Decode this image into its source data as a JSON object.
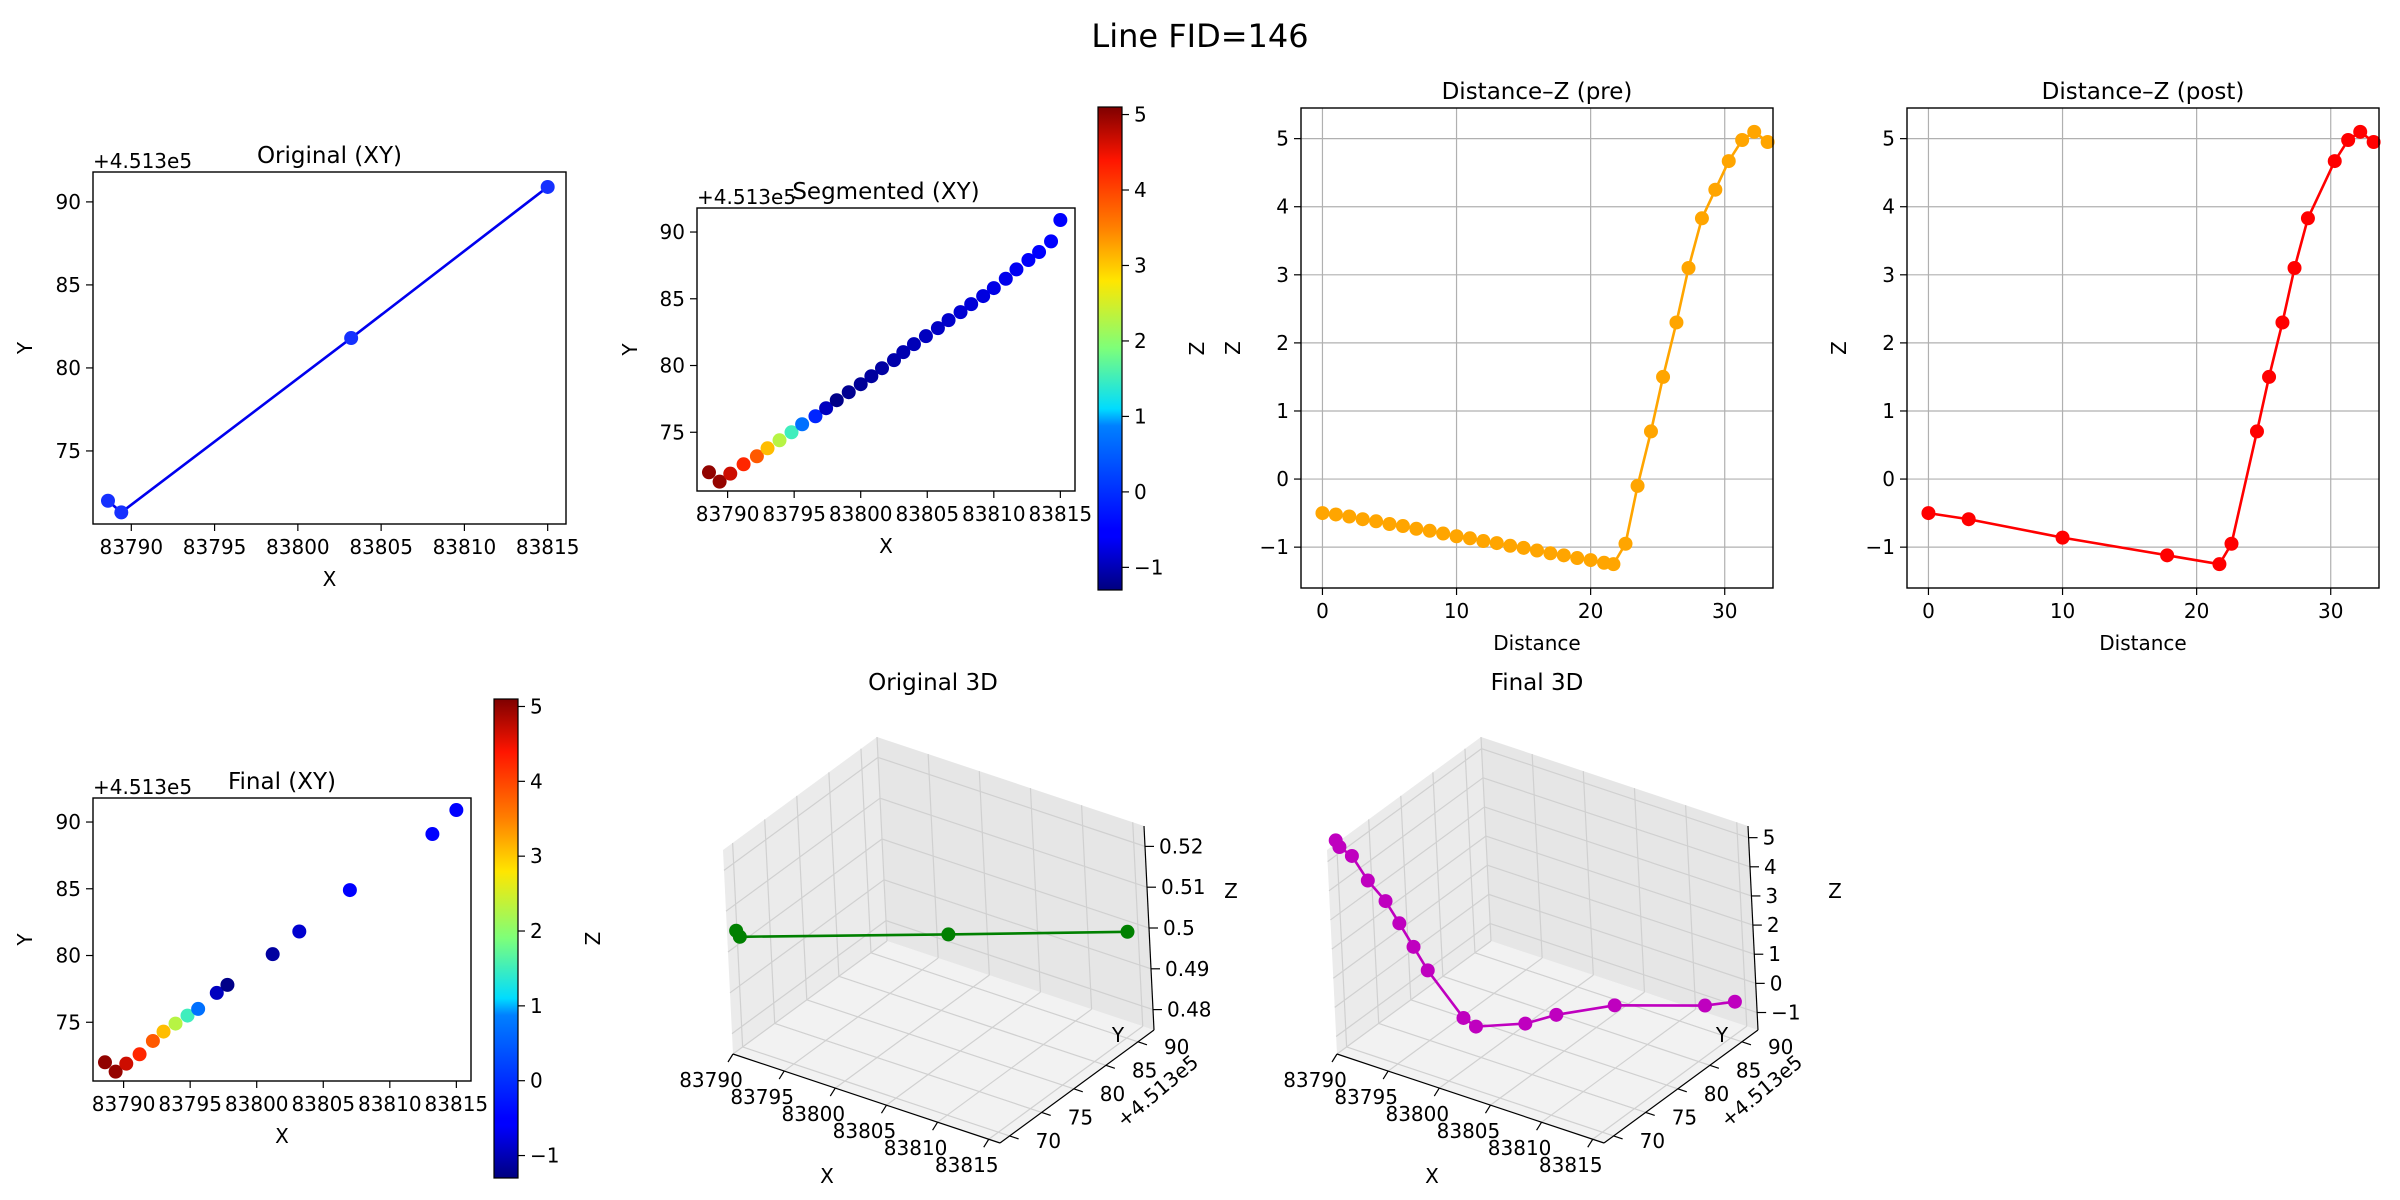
{
  "figure_title": "Line FID=146",
  "chart_data": [
    {
      "id": "orig_xy",
      "type": "line",
      "title": "Original (XY)",
      "xlabel": "X",
      "ylabel": "Y",
      "offset_label": "+4.513e5",
      "x_offset_label": "",
      "xlim": [
        83787.7,
        83816.1
      ],
      "ylim": [
        70.6,
        91.8
      ],
      "xticks": [
        83790,
        83795,
        83800,
        83805,
        83810,
        83815
      ],
      "yticks": [
        75,
        80,
        85,
        90
      ],
      "line_color": "#0000ee",
      "x": [
        83788.6,
        83789.4,
        83803.2,
        83815.0
      ],
      "y": [
        72.0,
        71.3,
        81.8,
        90.9
      ],
      "point_colors": [
        "#1530ff",
        "#1530ff",
        "#1530ff",
        "#1530ff"
      ]
    },
    {
      "id": "seg_xy",
      "type": "scatter",
      "title": "Segmented (XY)",
      "xlabel": "X",
      "ylabel": "Y",
      "offset_label": "+4.513e5",
      "xlim": [
        83787.7,
        83816.1
      ],
      "ylim": [
        70.6,
        91.8
      ],
      "xticks": [
        83790,
        83795,
        83800,
        83805,
        83810,
        83815
      ],
      "yticks": [
        75,
        80,
        85,
        90
      ],
      "x": [
        83788.6,
        83789.4,
        83790.2,
        83791.2,
        83792.2,
        83793.0,
        83793.9,
        83794.8,
        83795.6,
        83796.6,
        83797.4,
        83798.2,
        83799.1,
        83800.0,
        83800.8,
        83801.6,
        83802.5,
        83803.2,
        83804.0,
        83804.9,
        83805.8,
        83806.6,
        83807.5,
        83808.3,
        83809.2,
        83810.0,
        83810.9,
        83811.7,
        83812.6,
        83813.4,
        83814.3,
        83815.0
      ],
      "y": [
        72.0,
        71.3,
        71.9,
        72.6,
        73.2,
        73.8,
        74.4,
        75.0,
        75.6,
        76.2,
        76.8,
        77.4,
        78.0,
        78.6,
        79.2,
        79.8,
        80.4,
        81.0,
        81.6,
        82.2,
        82.8,
        83.4,
        84.0,
        84.6,
        85.2,
        85.8,
        86.5,
        87.2,
        87.9,
        88.5,
        89.3,
        90.9
      ],
      "z": [
        5.0,
        4.98,
        4.67,
        4.25,
        3.83,
        3.08,
        2.3,
        1.5,
        0.7,
        -0.1,
        -0.95,
        -1.25,
        -1.2,
        -1.17,
        -1.13,
        -1.1,
        -1.06,
        -1.03,
        -0.99,
        -0.95,
        -0.92,
        -0.88,
        -0.84,
        -0.81,
        -0.77,
        -0.73,
        -0.7,
        -0.66,
        -0.62,
        -0.59,
        -0.55,
        -0.5
      ]
    },
    {
      "id": "dz_pre",
      "type": "line",
      "title": "Distance–Z (pre)",
      "xlabel": "Distance",
      "ylabel": "Z",
      "xlim": [
        -1.6,
        33.6
      ],
      "ylim": [
        -1.6,
        5.45
      ],
      "xticks": [
        0,
        10,
        20,
        30
      ],
      "yticks": [
        -1,
        0,
        1,
        2,
        3,
        4,
        5
      ],
      "grid": true,
      "line_color": "#ffa500",
      "x": [
        0.0,
        1.0,
        2.0,
        3.0,
        4.0,
        5.0,
        6.0,
        7.0,
        8.0,
        9.0,
        10.0,
        11.0,
        12.0,
        13.0,
        14.0,
        15.0,
        16.0,
        17.0,
        18.0,
        19.0,
        20.0,
        21.0,
        21.7,
        22.6,
        23.5,
        24.5,
        25.4,
        26.4,
        27.3,
        28.3,
        29.3,
        30.3,
        31.3,
        32.2,
        33.2
      ],
      "y": [
        -0.5,
        -0.52,
        -0.55,
        -0.59,
        -0.62,
        -0.66,
        -0.69,
        -0.73,
        -0.76,
        -0.8,
        -0.84,
        -0.87,
        -0.91,
        -0.94,
        -0.98,
        -1.01,
        -1.05,
        -1.09,
        -1.12,
        -1.16,
        -1.19,
        -1.23,
        -1.25,
        -0.95,
        -0.1,
        0.7,
        1.5,
        2.3,
        3.1,
        3.83,
        4.25,
        4.67,
        4.98,
        5.1,
        4.95
      ]
    },
    {
      "id": "dz_post",
      "type": "line",
      "title": "Distance–Z (post)",
      "xlabel": "Distance",
      "ylabel": "Z",
      "xlim": [
        -1.6,
        33.6
      ],
      "ylim": [
        -1.6,
        5.45
      ],
      "xticks": [
        0,
        10,
        20,
        30
      ],
      "yticks": [
        -1,
        0,
        1,
        2,
        3,
        4,
        5
      ],
      "grid": true,
      "line_color": "#ff0000",
      "x": [
        0.0,
        3.0,
        10.0,
        17.8,
        21.7,
        22.6,
        24.5,
        25.4,
        26.4,
        27.3,
        28.3,
        30.3,
        31.3,
        32.2,
        33.2
      ],
      "y": [
        -0.5,
        -0.59,
        -0.86,
        -1.12,
        -1.25,
        -0.95,
        0.7,
        1.5,
        2.3,
        3.1,
        3.83,
        4.67,
        4.98,
        5.1,
        4.95
      ]
    },
    {
      "id": "final_xy",
      "type": "scatter",
      "title": "Final (XY)",
      "xlabel": "X",
      "ylabel": "Y",
      "offset_label": "+4.513e5",
      "xlim": [
        83787.7,
        83816.1
      ],
      "ylim": [
        70.6,
        91.8
      ],
      "xticks": [
        83790,
        83795,
        83800,
        83805,
        83810,
        83815
      ],
      "yticks": [
        75,
        80,
        85,
        90
      ],
      "x": [
        83788.6,
        83789.4,
        83790.2,
        83791.2,
        83792.2,
        83793.0,
        83793.9,
        83794.8,
        83795.6,
        83797.0,
        83797.8,
        83801.2,
        83803.2,
        83807.0,
        83813.2,
        83815.0
      ],
      "y": [
        72.0,
        71.3,
        71.9,
        72.6,
        73.6,
        74.3,
        74.9,
        75.5,
        76.0,
        77.2,
        77.8,
        80.1,
        81.8,
        84.9,
        89.1,
        90.9
      ],
      "z": [
        5.0,
        4.98,
        4.67,
        4.25,
        3.83,
        3.08,
        2.3,
        1.5,
        0.7,
        -0.95,
        -1.25,
        -1.12,
        -0.86,
        -0.59,
        -0.55,
        -0.5
      ]
    },
    {
      "id": "orig_3d",
      "type": "line3d",
      "title": "Original 3D",
      "xlabel": "X",
      "ylabel": "Y",
      "zlabel": "Z",
      "y_offset_label": "+4.513e5",
      "xticks": [
        83790,
        83795,
        83800,
        83805,
        83810,
        83815
      ],
      "yticks": [
        70,
        75,
        80,
        85,
        90
      ],
      "zticks": [
        0.48,
        0.49,
        0.5,
        0.51,
        0.52
      ],
      "zlim": [
        0.475,
        0.525
      ],
      "line_color": "#008000",
      "x": [
        83788.6,
        83789.4,
        83803.2,
        83815.0
      ],
      "y": [
        72.0,
        71.3,
        81.8,
        90.9
      ],
      "z": [
        0.5,
        0.5,
        0.5,
        0.5
      ]
    },
    {
      "id": "final_3d",
      "type": "line3d",
      "title": "Final 3D",
      "xlabel": "X",
      "ylabel": "Y",
      "zlabel": "Z",
      "y_offset_label": "+4.513e5",
      "xticks": [
        83790,
        83795,
        83800,
        83805,
        83810,
        83815
      ],
      "yticks": [
        70,
        75,
        80,
        85,
        90
      ],
      "zticks": [
        -1,
        0,
        1,
        2,
        3,
        4,
        5
      ],
      "zlim": [
        -1.6,
        5.4
      ],
      "line_color": "#bf00bf",
      "x": [
        83788.6,
        83789.4,
        83790.2,
        83791.2,
        83792.2,
        83793.0,
        83793.9,
        83794.8,
        83797.0,
        83797.8,
        83801.2,
        83803.2,
        83807.0,
        83813.2,
        83815.0
      ],
      "y": [
        72.0,
        71.3,
        71.9,
        72.6,
        73.6,
        74.3,
        74.9,
        75.5,
        77.2,
        77.8,
        80.1,
        81.8,
        84.9,
        89.1,
        90.9
      ],
      "z": [
        5.0,
        4.98,
        4.67,
        3.83,
        3.08,
        2.3,
        1.5,
        0.7,
        -0.95,
        -1.25,
        -1.12,
        -0.86,
        -0.59,
        -0.55,
        -0.5
      ]
    }
  ],
  "colorbars": [
    {
      "id": "cb_seg",
      "label": "Z",
      "ticks": [
        -1,
        0,
        1,
        2,
        3,
        4,
        5
      ],
      "range": [
        -1.3,
        5.1
      ]
    },
    {
      "id": "cb_final",
      "label": "Z",
      "ticks": [
        -1,
        0,
        1,
        2,
        3,
        4,
        5
      ],
      "range": [
        -1.3,
        5.1
      ]
    }
  ]
}
